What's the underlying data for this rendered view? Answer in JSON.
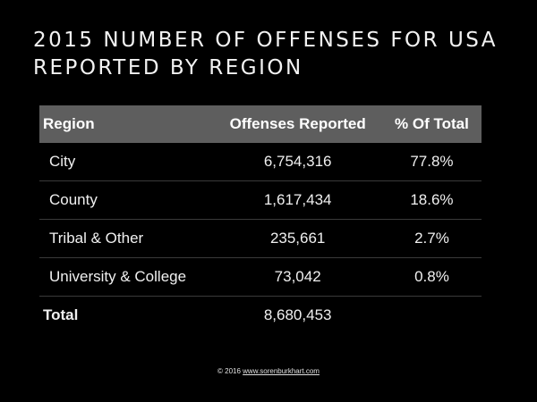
{
  "title_lines": [
    "2015 NUMBER OF OFFENSES FOR USA",
    "REPORTED BY REGION"
  ],
  "chart_data": {
    "type": "table",
    "columns": [
      "Region",
      "Offenses Reported",
      "% Of Total"
    ],
    "rows": [
      {
        "region": "City",
        "offenses": "6,754,316",
        "percent": "77.8%"
      },
      {
        "region": "County",
        "offenses": "1,617,434",
        "percent": "18.6%"
      },
      {
        "region": "Tribal & Other",
        "offenses": "235,661",
        "percent": "2.7%"
      },
      {
        "region": "University & College",
        "offenses": "73,042",
        "percent": "0.8%"
      }
    ],
    "total": {
      "label": "Total",
      "offenses": "8,680,453",
      "percent": ""
    }
  },
  "footer": {
    "prefix": "© 2016 ",
    "link": "www.sorenburkhart.com"
  },
  "colors": {
    "background": "#000000",
    "header_fill": "#5e5e5e",
    "text": "#ffffff"
  }
}
